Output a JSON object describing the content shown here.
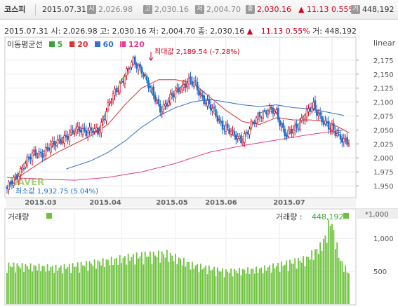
{
  "header": {
    "index_name": "코스피",
    "date": "2015.07.31",
    "open_icon": "시",
    "open": "2,026.98",
    "high_icon": "고",
    "high": "2,030.16",
    "low_icon": "저",
    "low": "2,004.70",
    "close_icon": "종",
    "close": "2,030.16",
    "change": "11.13",
    "change_pct": "0.55%",
    "volume_icon": "거",
    "volume": "448,192"
  },
  "info_line": {
    "date": "2015.07.31",
    "open": "시: 2,026.98",
    "high": "고: 2,030.16",
    "low": "저: 2,004.70",
    "close": "종: 2,030.16",
    "change": "11.13",
    "change_pct": "0.55%",
    "volume": "거: 448,192"
  },
  "legend": {
    "title": "이동평균선",
    "ma5": "5",
    "ma20": "20",
    "ma60": "60",
    "ma120": "120"
  },
  "scale_label": "linear",
  "brand": "NAVER",
  "annotations": {
    "max": "최대값 2,189.54 (-7.28%)",
    "min": "최소값 1,932.75 (5.04%)"
  },
  "volume_panel": {
    "title": "거래량",
    "right_label": "거래량 : ",
    "right_value": "448,192",
    "unit": "*1,000"
  },
  "colors": {
    "up": "#d0021b",
    "down": "#1a6fd1",
    "ma5": "#3aa335",
    "ma20": "#d93030",
    "ma60": "#2f6fd0",
    "ma120": "#e8398a",
    "volume_bar": "#6dc23c"
  },
  "chart_data": [
    {
      "type": "candlestick",
      "title": "",
      "x_tick_labels": [
        "2015.03",
        "2015.04",
        "2015.05",
        "2015.06",
        "2015.07"
      ],
      "y_ticks": [
        1950,
        1975,
        2000,
        2025,
        2050,
        2075,
        2100,
        2125,
        2150,
        2175
      ],
      "ylim": [
        1930,
        2215
      ],
      "grid": true,
      "series": [
        {
          "name": "5",
          "anchors": [
            [
              0,
              1945
            ],
            [
              5,
              1962
            ],
            [
              10,
              1990
            ],
            [
              16,
              2005
            ],
            [
              22,
              2012
            ],
            [
              27,
              2020
            ],
            [
              32,
              2035
            ],
            [
              38,
              2040
            ],
            [
              43,
              2055
            ],
            [
              48,
              2045
            ],
            [
              54,
              2048
            ],
            [
              59,
              2085
            ],
            [
              64,
              2115
            ],
            [
              70,
              2150
            ],
            [
              75,
              2170
            ],
            [
              80,
              2160
            ],
            [
              86,
              2115
            ],
            [
              91,
              2090
            ],
            [
              96,
              2100
            ],
            [
              102,
              2125
            ],
            [
              107,
              2135
            ],
            [
              112,
              2130
            ],
            [
              118,
              2100
            ],
            [
              123,
              2080
            ],
            [
              128,
              2060
            ],
            [
              134,
              2040
            ],
            [
              139,
              2035
            ],
            [
              144,
              2050
            ],
            [
              150,
              2080
            ],
            [
              155,
              2085
            ],
            [
              160,
              2080
            ],
            [
              166,
              2040
            ],
            [
              171,
              2050
            ],
            [
              176,
              2075
            ],
            [
              182,
              2090
            ],
            [
              187,
              2072
            ],
            [
              192,
              2050
            ],
            [
              198,
              2040
            ],
            [
              203,
              2025
            ]
          ]
        },
        {
          "name": "20",
          "anchors": [
            [
              0,
              1950
            ],
            [
              10,
              1972
            ],
            [
              20,
              1992
            ],
            [
              30,
              2010
            ],
            [
              40,
              2025
            ],
            [
              50,
              2040
            ],
            [
              60,
              2060
            ],
            [
              70,
              2095
            ],
            [
              80,
              2125
            ],
            [
              90,
              2140
            ],
            [
              100,
              2140
            ],
            [
              110,
              2135
            ],
            [
              120,
              2110
            ],
            [
              130,
              2085
            ],
            [
              140,
              2065
            ],
            [
              150,
              2060
            ],
            [
              160,
              2072
            ],
            [
              170,
              2068
            ],
            [
              180,
              2068
            ],
            [
              190,
              2065
            ],
            [
              197,
              2055
            ],
            [
              203,
              2045
            ]
          ]
        },
        {
          "name": "60",
          "anchors": [
            [
              35,
              1980
            ],
            [
              50,
              1995
            ],
            [
              60,
              2010
            ],
            [
              70,
              2030
            ],
            [
              80,
              2055
            ],
            [
              90,
              2075
            ],
            [
              100,
              2090
            ],
            [
              110,
              2100
            ],
            [
              120,
              2105
            ],
            [
              130,
              2100
            ],
            [
              140,
              2095
            ],
            [
              150,
              2092
            ],
            [
              160,
              2095
            ],
            [
              170,
              2090
            ],
            [
              180,
              2088
            ],
            [
              190,
              2082
            ],
            [
              200,
              2076
            ]
          ]
        },
        {
          "name": "120",
          "anchors": [
            [
              0,
              1965
            ],
            [
              20,
              1962
            ],
            [
              40,
              1960
            ],
            [
              60,
              1965
            ],
            [
              80,
              1975
            ],
            [
              100,
              1990
            ],
            [
              120,
              2010
            ],
            [
              140,
              2022
            ],
            [
              160,
              2032
            ],
            [
              180,
              2042
            ],
            [
              200,
              2050
            ]
          ]
        }
      ],
      "annotations": [
        {
          "label": "최대값 2,189.54 (-7.28%)",
          "x": 74,
          "y": 2189.54
        },
        {
          "label": "최소값 1,932.75 (5.04%)",
          "x": 0,
          "y": 1932.75
        }
      ]
    },
    {
      "type": "bar",
      "title": "거래량",
      "y_ticks": [
        500,
        1000
      ],
      "ylim": [
        0,
        1300
      ],
      "unit": "*1,000",
      "last_value": 448192
    }
  ]
}
